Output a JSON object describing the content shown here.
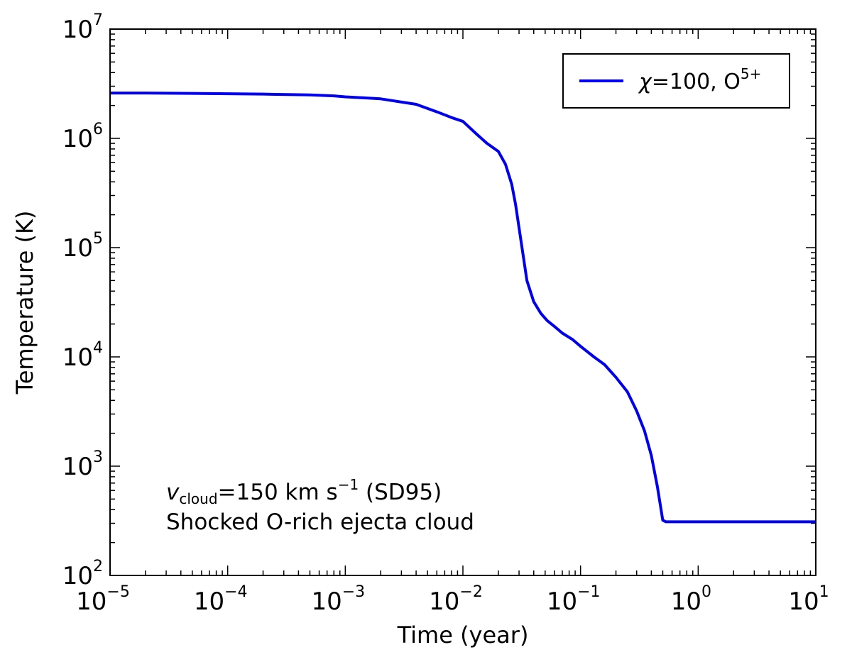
{
  "chart_data": {
    "type": "line",
    "title": "",
    "xlabel": "Time (year)",
    "ylabel": "Temperature (K)",
    "xscale": "log",
    "yscale": "log",
    "xlim": [
      1e-05,
      10
    ],
    "ylim": [
      100,
      10000000
    ],
    "grid": false,
    "x_ticks": [
      {
        "base": "10",
        "exp": "−5"
      },
      {
        "base": "10",
        "exp": "−4"
      },
      {
        "base": "10",
        "exp": "−3"
      },
      {
        "base": "10",
        "exp": "−2"
      },
      {
        "base": "10",
        "exp": "−1"
      },
      {
        "base": "10",
        "exp": "0"
      },
      {
        "base": "10",
        "exp": "1"
      }
    ],
    "y_ticks": [
      {
        "base": "10",
        "exp": "2"
      },
      {
        "base": "10",
        "exp": "3"
      },
      {
        "base": "10",
        "exp": "4"
      },
      {
        "base": "10",
        "exp": "5"
      },
      {
        "base": "10",
        "exp": "6"
      },
      {
        "base": "10",
        "exp": "7"
      }
    ],
    "legend": {
      "position": "top-right",
      "entries": [
        {
          "label_chi": "χ",
          "label_main": "=100, O",
          "label_sup": "5+",
          "color": "#0000ee"
        }
      ]
    },
    "annotations": {
      "line1_v": "v",
      "line1_sub": "cloud",
      "line1_main": "=150 km s",
      "line1_sup": "−1",
      "line1_tail": " (SD95)",
      "line2": "Shocked O-rich ejecta cloud"
    },
    "series": [
      {
        "name": "χ=100, O5+",
        "color": "#0000ee",
        "x": [
          1e-05,
          2e-05,
          5e-05,
          0.0001,
          0.0002,
          0.0005,
          0.0008,
          0.001,
          0.002,
          0.004,
          0.006,
          0.008,
          0.01,
          0.013,
          0.016,
          0.02,
          0.023,
          0.026,
          0.028,
          0.031,
          0.035,
          0.04,
          0.046,
          0.052,
          0.06,
          0.07,
          0.085,
          0.1,
          0.13,
          0.16,
          0.2,
          0.25,
          0.3,
          0.35,
          0.4,
          0.45,
          0.5,
          0.53,
          0.6,
          1,
          2,
          5,
          10
        ],
        "y": [
          2600000,
          2600000,
          2580000,
          2560000,
          2540000,
          2500000,
          2450000,
          2400000,
          2300000,
          2050000,
          1750000,
          1550000,
          1430000,
          1100000,
          900000,
          760000,
          580000,
          380000,
          250000,
          120000,
          50000,
          32000,
          25000,
          21500,
          19000,
          16500,
          14500,
          12500,
          10000,
          8500,
          6500,
          4800,
          3200,
          2100,
          1250,
          650,
          320,
          310,
          310,
          310,
          310,
          310,
          310
        ]
      }
    ]
  }
}
